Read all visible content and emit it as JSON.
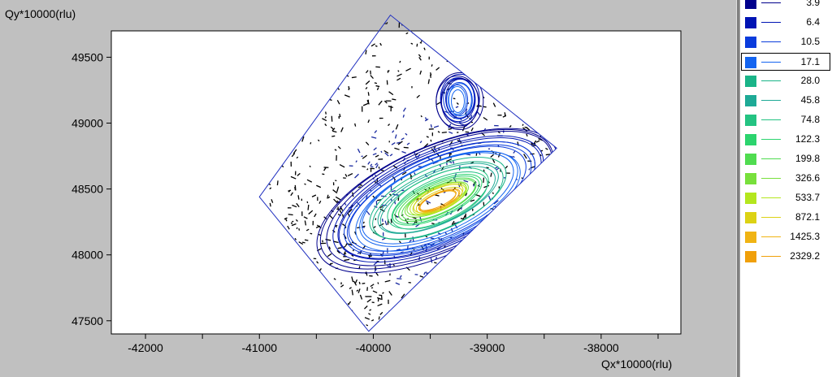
{
  "chart_data": {
    "type": "contour",
    "xlabel": "Qx*10000(rlu)",
    "ylabel": "Qy*10000(rlu)",
    "xlim": [
      -42300,
      -37300
    ],
    "ylim": [
      47400,
      49700
    ],
    "x_ticks": [
      -42000,
      -41000,
      -40000,
      -39000,
      -38000
    ],
    "y_ticks": [
      47500,
      48000,
      48500,
      49000,
      49500
    ],
    "x_tick_labels": [
      "-42000",
      "-41000",
      "-40000",
      "-39000",
      "-38000"
    ],
    "y_tick_labels": [
      "47500",
      "48000",
      "48500",
      "49000",
      "49500"
    ],
    "scan_region_corners": [
      [
        -41000,
        48440
      ],
      [
        -39850,
        49820
      ],
      [
        -38390,
        48810
      ],
      [
        -40040,
        47420
      ]
    ],
    "peaks": [
      {
        "x": -39430,
        "y": 48420,
        "max_level": 2329.2,
        "sx": 520,
        "sy": 120,
        "rotation_deg": 24
      },
      {
        "x": -39250,
        "y": 49170,
        "max_level": 17.1,
        "sx": 160,
        "sy": 110,
        "rotation_deg": 0
      }
    ],
    "grid": false,
    "legend_position": "right panel"
  },
  "legend": {
    "items": [
      {
        "value": "3.9",
        "color": "#00008c"
      },
      {
        "value": "6.4",
        "color": "#0014b4"
      },
      {
        "value": "10.5",
        "color": "#0a3cdc"
      },
      {
        "value": "17.1",
        "color": "#1464f0",
        "selected": true
      },
      {
        "value": "28.0",
        "color": "#1ab488"
      },
      {
        "value": "45.8",
        "color": "#1eaa96"
      },
      {
        "value": "74.8",
        "color": "#24c382"
      },
      {
        "value": "122.3",
        "color": "#2cd46e"
      },
      {
        "value": "199.8",
        "color": "#50dc50"
      },
      {
        "value": "326.6",
        "color": "#78e03c"
      },
      {
        "value": "533.7",
        "color": "#b4e61e"
      },
      {
        "value": "872.1",
        "color": "#dcd214"
      },
      {
        "value": "1425.3",
        "color": "#f0b414"
      },
      {
        "value": "2329.2",
        "color": "#f0a00a"
      }
    ]
  }
}
